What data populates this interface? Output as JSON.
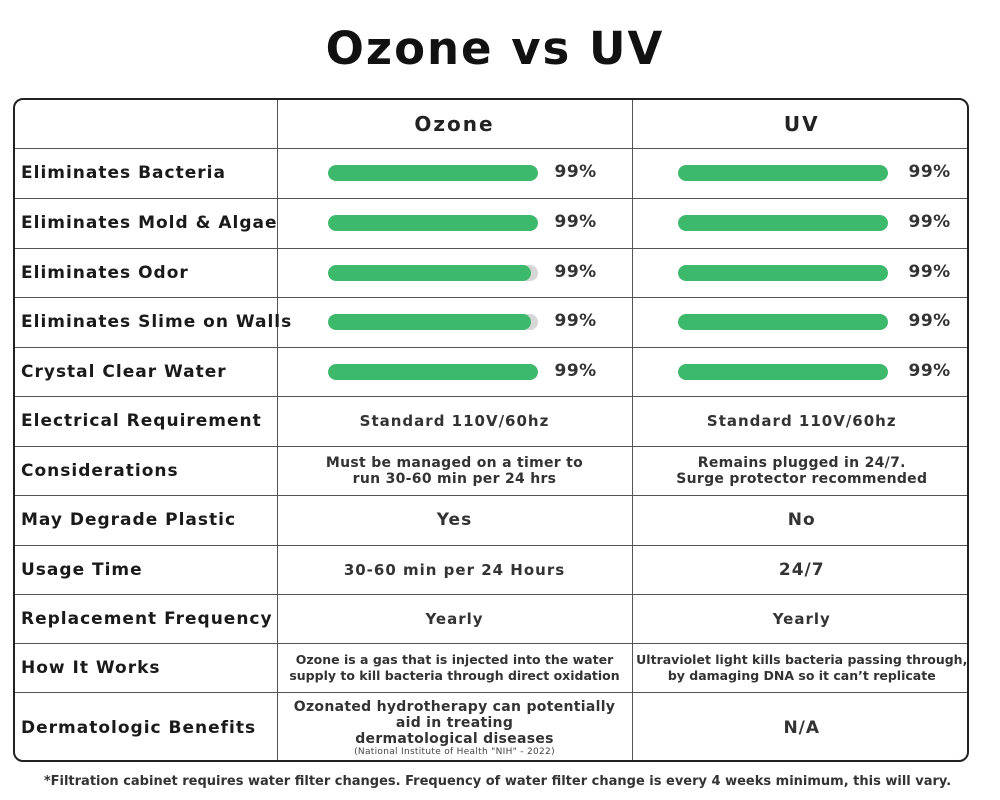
{
  "title": "Ozone vs UV",
  "columns": {
    "ozone": "Ozone",
    "uv": "UV"
  },
  "colors": {
    "bar_fill": "#3cb96b",
    "bar_track": "#d6d6d6"
  },
  "bar_rows": [
    {
      "label": "Eliminates Bacteria",
      "ozone_pct": "99%",
      "ozone_fill": 1.0,
      "uv_pct": "99%",
      "uv_fill": 1.0
    },
    {
      "label": "Eliminates Mold & Algae",
      "ozone_pct": "99%",
      "ozone_fill": 1.0,
      "uv_pct": "99%",
      "uv_fill": 1.0
    },
    {
      "label": "Eliminates Odor",
      "ozone_pct": "99%",
      "ozone_fill": 0.97,
      "uv_pct": "99%",
      "uv_fill": 1.0
    },
    {
      "label": "Eliminates Slime on Walls",
      "ozone_pct": "99%",
      "ozone_fill": 0.97,
      "uv_pct": "99%",
      "uv_fill": 1.0
    },
    {
      "label": "Crystal Clear Water",
      "ozone_pct": "99%",
      "ozone_fill": 1.0,
      "uv_pct": "99%",
      "uv_fill": 1.0
    }
  ],
  "text_rows": [
    {
      "label": "Electrical Requirement",
      "ozone": "Standard 110V/60hz",
      "uv": "Standard 110V/60hz"
    },
    {
      "label": "Considerations",
      "ozone_line1": "Must be managed on a timer to",
      "ozone_line2": "run 30-60 min per 24 hrs",
      "uv_line1": "Remains plugged in 24/7.",
      "uv_line2": "Surge protector recommended"
    },
    {
      "label": "May Degrade Plastic",
      "ozone": "Yes",
      "uv": "No"
    },
    {
      "label": "Usage Time",
      "ozone": "30-60 min per 24 Hours",
      "uv": "24/7"
    },
    {
      "label": "Replacement Frequency",
      "ozone": "Yearly",
      "uv": "Yearly"
    },
    {
      "label": "How It Works",
      "ozone_line1": "Ozone is a gas that is injected into the water",
      "ozone_line2": "supply to kill bacteria through direct oxidation",
      "uv_line1": "Ultraviolet light kills bacteria passing through,",
      "uv_line2": "by damaging DNA so it can’t replicate"
    },
    {
      "label": "Dermatologic Benefits",
      "ozone_line1": "Ozonated hydrotherapy can potentially",
      "ozone_line2": "aid in treating",
      "ozone_line3": "dermatological diseases",
      "ozone_source": "(National Institute of Health \"NIH\" - 2022)",
      "uv": "N/A"
    }
  ],
  "footnote": "*Filtration cabinet requires water filter changes. Frequency of water filter change is every 4 weeks minimum, this will vary."
}
